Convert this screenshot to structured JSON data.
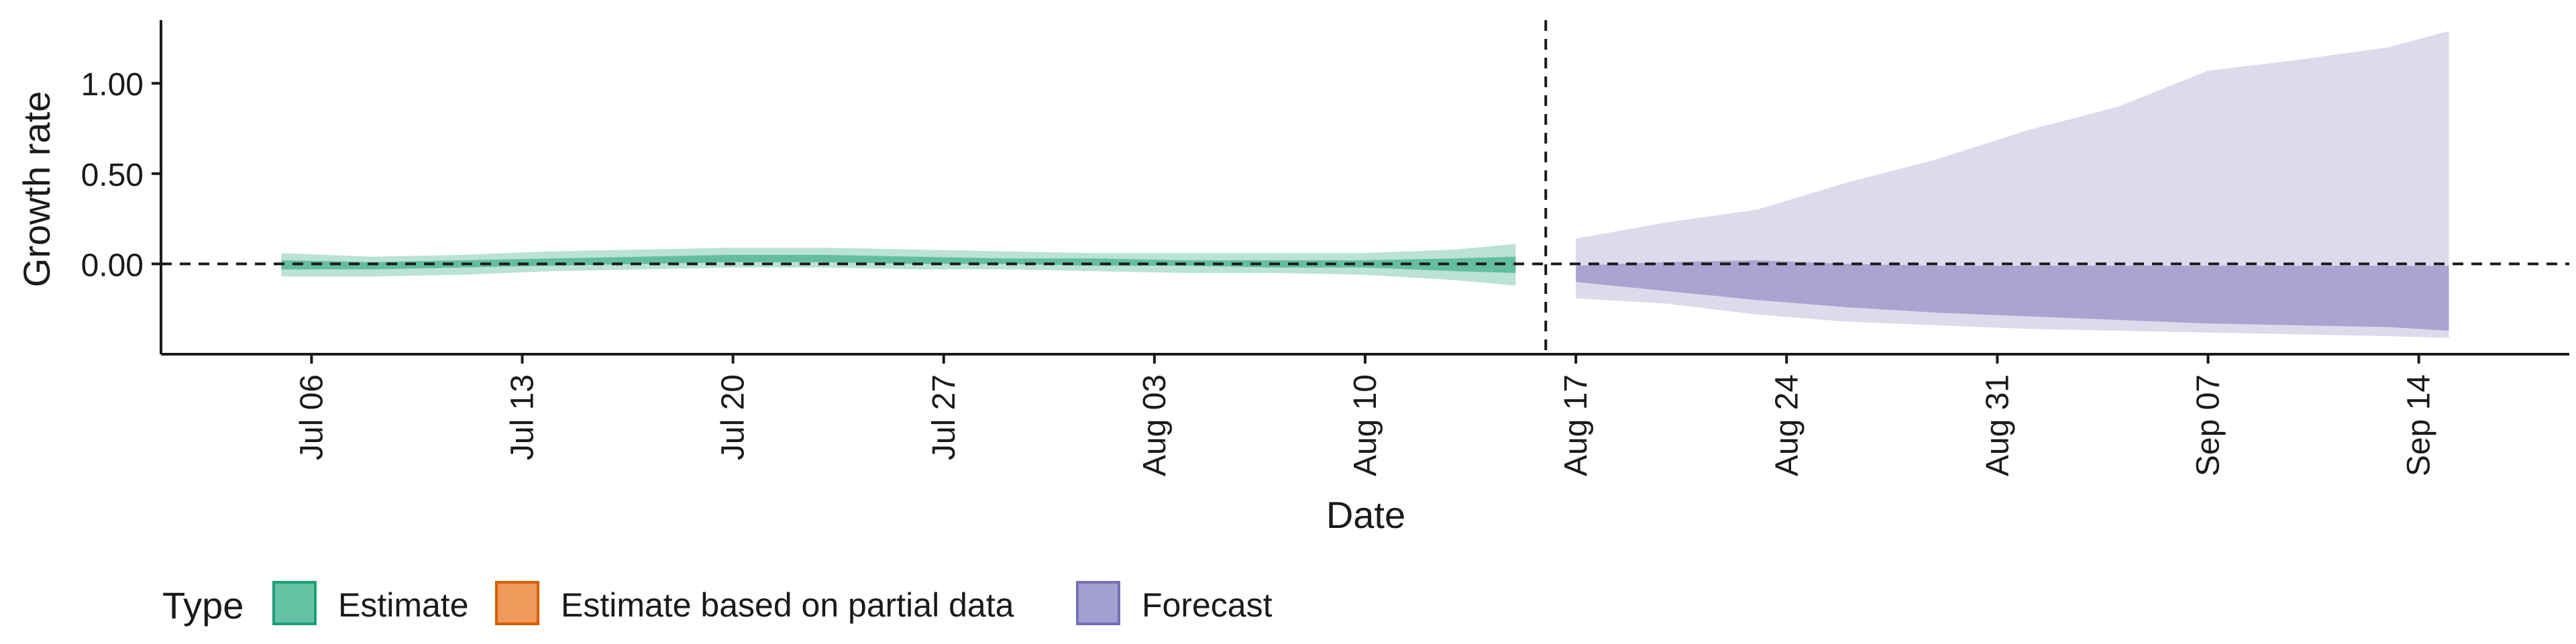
{
  "chart_data": {
    "type": "area",
    "title": "",
    "xlabel": "Date",
    "ylabel": "Growth rate",
    "x_ticks": [
      "Jul 06",
      "Jul 13",
      "Jul 20",
      "Jul 27",
      "Aug 03",
      "Aug 10",
      "Aug 17",
      "Aug 24",
      "Aug 31",
      "Sep 07",
      "Sep 14"
    ],
    "x_range": [
      "2020-07-01",
      "2020-09-19"
    ],
    "y_ticks": [
      "0.00",
      "0.50",
      "1.00"
    ],
    "y_tick_values": [
      0,
      0.5,
      1.0
    ],
    "ylim": [
      -0.5,
      1.35
    ],
    "reference_lines": {
      "horizontal_y": 0,
      "vertical_date": "2020-08-16"
    },
    "legend": {
      "title": "Type",
      "position": "bottom-left",
      "items": [
        {
          "label": "Estimate",
          "fill": "#66c2a5",
          "stroke": "#1b9e77"
        },
        {
          "label": "Estimate based on partial data",
          "fill": "#ef9a5a",
          "stroke": "#d95f02"
        },
        {
          "label": "Forecast",
          "fill": "#a39fd1",
          "stroke": "#7570b3"
        }
      ]
    },
    "series": [
      {
        "name": "Estimate",
        "color": "#1b9e77",
        "dates": [
          "2020-07-05",
          "2020-07-08",
          "2020-07-11",
          "2020-07-14",
          "2020-07-17",
          "2020-07-20",
          "2020-07-23",
          "2020-07-26",
          "2020-07-29",
          "2020-08-01",
          "2020-08-04",
          "2020-08-07",
          "2020-08-10",
          "2020-08-13",
          "2020-08-15"
        ],
        "outer_lower": [
          -0.07,
          -0.07,
          -0.06,
          -0.04,
          -0.03,
          -0.02,
          -0.02,
          -0.03,
          -0.03,
          -0.04,
          -0.05,
          -0.05,
          -0.06,
          -0.09,
          -0.12
        ],
        "outer_upper": [
          0.06,
          0.04,
          0.05,
          0.07,
          0.08,
          0.09,
          0.09,
          0.08,
          0.07,
          0.06,
          0.06,
          0.06,
          0.06,
          0.08,
          0.11
        ],
        "inner_lower": [
          -0.03,
          -0.03,
          -0.02,
          -0.01,
          0.0,
          0.01,
          0.01,
          0.0,
          0.0,
          -0.01,
          -0.01,
          -0.02,
          -0.02,
          -0.04,
          -0.05
        ],
        "inner_upper": [
          0.02,
          0.01,
          0.02,
          0.03,
          0.04,
          0.05,
          0.05,
          0.04,
          0.03,
          0.03,
          0.02,
          0.02,
          0.02,
          0.03,
          0.04
        ]
      },
      {
        "name": "Forecast",
        "color": "#7570b3",
        "dates": [
          "2020-08-17",
          "2020-08-20",
          "2020-08-23",
          "2020-08-26",
          "2020-08-29",
          "2020-09-01",
          "2020-09-04",
          "2020-09-07",
          "2020-09-10",
          "2020-09-13",
          "2020-09-15"
        ],
        "outer_lower": [
          -0.19,
          -0.22,
          -0.28,
          -0.32,
          -0.34,
          -0.36,
          -0.37,
          -0.38,
          -0.39,
          -0.4,
          -0.41
        ],
        "outer_upper": [
          0.14,
          0.23,
          0.3,
          0.45,
          0.58,
          0.74,
          0.87,
          1.07,
          1.13,
          1.2,
          1.29
        ],
        "inner_lower": [
          -0.1,
          -0.15,
          -0.2,
          -0.24,
          -0.27,
          -0.29,
          -0.31,
          -0.33,
          -0.34,
          -0.35,
          -0.37
        ],
        "inner_upper": [
          -0.01,
          0.01,
          0.02,
          0.0,
          -0.01,
          -0.01,
          -0.01,
          -0.01,
          -0.01,
          -0.01,
          -0.01
        ]
      }
    ]
  }
}
